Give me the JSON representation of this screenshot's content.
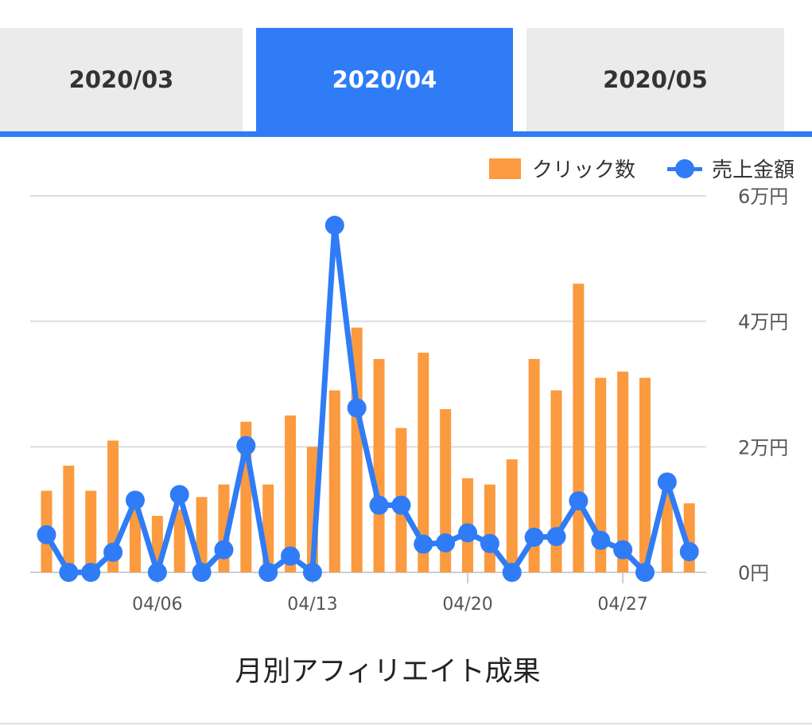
{
  "tabs": [
    {
      "label": "2020/03",
      "active": false
    },
    {
      "label": "2020/04",
      "active": true
    },
    {
      "label": "2020/05",
      "active": false
    }
  ],
  "colors": {
    "accent": "#2f7cf6",
    "bar": "#fb9a3f",
    "tab_inactive": "#ebebeb"
  },
  "chart_data": {
    "type": "bar+line",
    "title": "月別アフィリエイト成果",
    "x": [
      "04/01",
      "04/02",
      "04/03",
      "04/04",
      "04/05",
      "04/06",
      "04/07",
      "04/08",
      "04/09",
      "04/10",
      "04/11",
      "04/12",
      "04/13",
      "04/14",
      "04/15",
      "04/16",
      "04/17",
      "04/18",
      "04/19",
      "04/20",
      "04/21",
      "04/22",
      "04/23",
      "04/24",
      "04/25",
      "04/26",
      "04/27",
      "04/28",
      "04/29",
      "04/30"
    ],
    "x_tick_labels": [
      "04/06",
      "04/13",
      "04/20",
      "04/27"
    ],
    "y_tick_labels": [
      "0円",
      "2万円",
      "4万円",
      "6万円"
    ],
    "ylim": [
      0,
      60000
    ],
    "grid": true,
    "legend_position": "top-right",
    "series": [
      {
        "name": "クリック数",
        "type": "bar",
        "axis": "unlabeled",
        "axis_max": 60,
        "values": [
          13,
          17,
          13,
          21,
          10,
          9,
          10,
          12,
          14,
          24,
          14,
          25,
          20,
          29,
          39,
          34,
          23,
          35,
          26,
          15,
          14,
          18,
          34,
          29,
          46,
          31,
          32,
          31,
          13,
          11
        ]
      },
      {
        "name": "売上金額",
        "type": "line",
        "values": [
          6000,
          0,
          0,
          3200,
          11500,
          0,
          12400,
          0,
          3600,
          20200,
          0,
          2600,
          0,
          55300,
          26200,
          10700,
          10700,
          4500,
          4700,
          6300,
          4600,
          0,
          5600,
          5700,
          11400,
          5100,
          3600,
          0,
          14400,
          3300
        ]
      }
    ]
  }
}
